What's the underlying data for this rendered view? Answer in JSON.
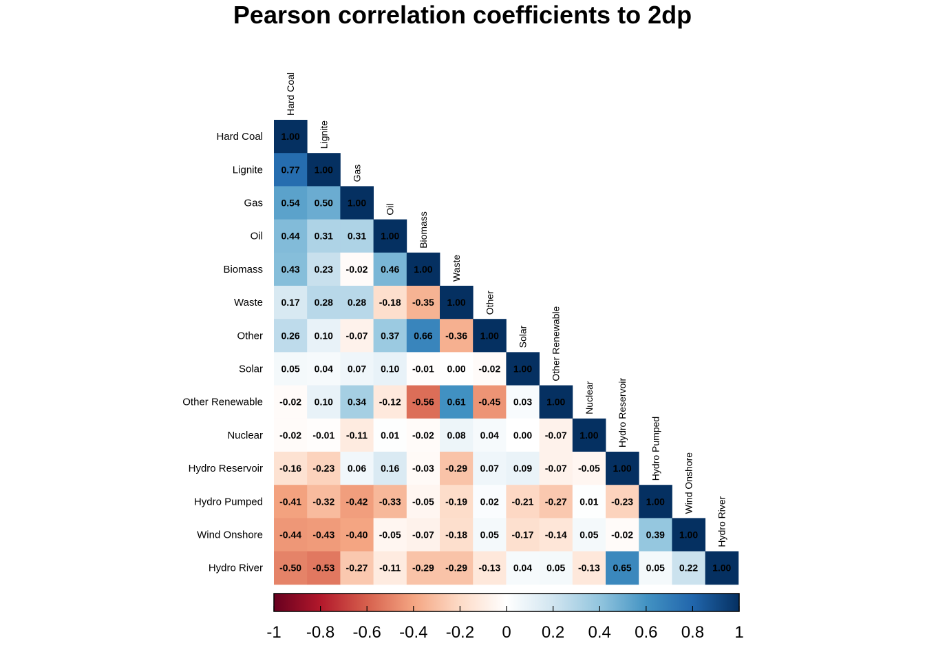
{
  "chart_data": {
    "type": "heatmap",
    "title": "Pearson correlation coefficients to 2dp",
    "variables": [
      "Hard Coal",
      "Lignite",
      "Gas",
      "Oil",
      "Biomass",
      "Waste",
      "Other",
      "Solar",
      "Other Renewable",
      "Nuclear",
      "Hydro Reservoir",
      "Hydro Pumped",
      "Wind Onshore",
      "Hydro River"
    ],
    "matrix": [
      [
        1.0
      ],
      [
        0.77,
        1.0
      ],
      [
        0.54,
        0.5,
        1.0
      ],
      [
        0.44,
        0.31,
        0.31,
        1.0
      ],
      [
        0.43,
        0.23,
        -0.02,
        0.46,
        1.0
      ],
      [
        0.17,
        0.28,
        0.28,
        -0.18,
        -0.35,
        1.0
      ],
      [
        0.26,
        0.1,
        -0.07,
        0.37,
        0.66,
        -0.36,
        1.0
      ],
      [
        0.05,
        0.04,
        0.07,
        0.1,
        -0.01,
        0.0,
        -0.02,
        1.0
      ],
      [
        -0.02,
        0.1,
        0.34,
        -0.12,
        -0.56,
        0.61,
        -0.45,
        0.03,
        1.0
      ],
      [
        -0.02,
        -0.01,
        -0.11,
        0.01,
        -0.02,
        0.08,
        0.04,
        0.0,
        -0.07,
        1.0
      ],
      [
        -0.16,
        -0.23,
        0.06,
        0.16,
        -0.03,
        -0.29,
        0.07,
        0.09,
        -0.07,
        -0.05,
        1.0
      ],
      [
        -0.41,
        -0.32,
        -0.42,
        -0.33,
        -0.05,
        -0.19,
        0.02,
        -0.21,
        -0.27,
        0.01,
        -0.23,
        1.0
      ],
      [
        -0.44,
        -0.43,
        -0.4,
        -0.05,
        -0.07,
        -0.18,
        0.05,
        -0.17,
        -0.14,
        0.05,
        -0.02,
        0.39,
        1.0
      ],
      [
        -0.5,
        -0.53,
        -0.27,
        -0.11,
        -0.29,
        -0.29,
        -0.13,
        0.04,
        0.05,
        -0.13,
        0.65,
        0.05,
        0.22,
        1.0
      ]
    ],
    "value_range": [
      -1,
      1
    ],
    "colorbar_ticks": [
      "-1",
      "-0.8",
      "-0.6",
      "-0.4",
      "-0.2",
      "0",
      "0.2",
      "0.4",
      "0.6",
      "0.8",
      "1"
    ],
    "colorbar_position": "bottom",
    "colormap": [
      "#67001F",
      "#B2182B",
      "#D6604D",
      "#F4A582",
      "#FDDBC7",
      "#FFFFFF",
      "#D1E5F0",
      "#92C5DE",
      "#4393C3",
      "#2166AC",
      "#053061"
    ],
    "cell_text_color": "#000000",
    "grid": false
  }
}
